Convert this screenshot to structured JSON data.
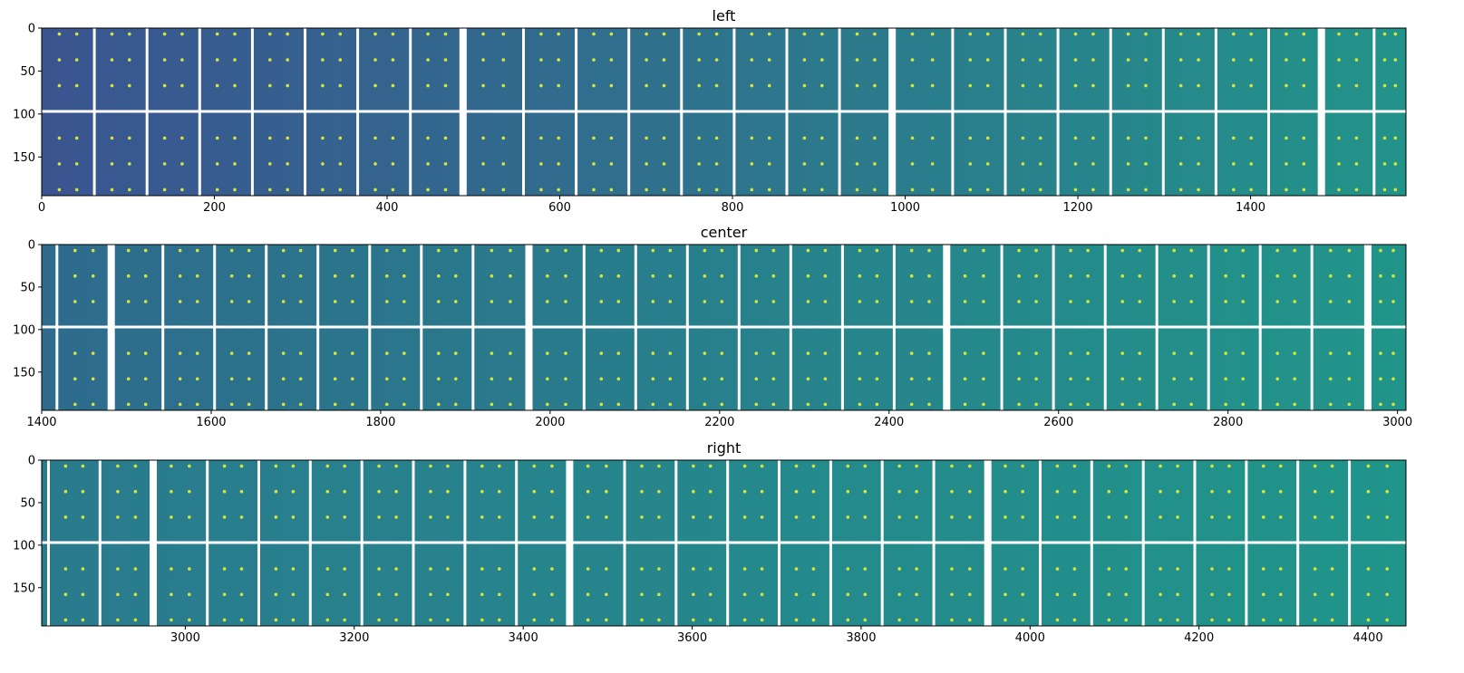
{
  "chart_data": [
    {
      "type": "heatmap",
      "title": "left",
      "xlabel": "",
      "ylabel": "",
      "colormap": "viridis",
      "xlim": [
        0,
        1580
      ],
      "ylim": [
        195,
        0
      ],
      "xticks": [
        0,
        200,
        400,
        600,
        800,
        1000,
        1200,
        1400
      ],
      "yticks": [
        0,
        50,
        100,
        150
      ],
      "gap_rows": [
        97
      ],
      "gap_cols": [
        61,
        122,
        183,
        244,
        305,
        366,
        427,
        488,
        558,
        619,
        680,
        741,
        802,
        863,
        924,
        985,
        1055,
        1116,
        1177,
        1238,
        1299,
        1360,
        1421,
        1482,
        1543
      ],
      "wide_gap_cols": [
        488,
        985,
        1482
      ],
      "spot_rows": [
        7,
        37,
        67,
        128,
        158,
        188
      ],
      "spot_cols_per_tile": 2,
      "colors": {
        "dark": "#3a5490",
        "light": "#22938a",
        "spot": "#d6e638",
        "gap": "#ffffff"
      }
    },
    {
      "type": "heatmap",
      "title": "center",
      "xlabel": "",
      "ylabel": "",
      "colormap": "viridis",
      "xlim": [
        1400,
        3010
      ],
      "ylim": [
        195,
        0
      ],
      "xticks": [
        1400,
        1600,
        1800,
        2000,
        2200,
        2400,
        2600,
        2800,
        3000
      ],
      "yticks": [
        0,
        50,
        100,
        150
      ],
      "gap_rows": [
        97
      ],
      "gap_cols": [
        1418,
        1482,
        1543,
        1604,
        1665,
        1726,
        1787,
        1848,
        1909,
        1975,
        2040,
        2101,
        2162,
        2223,
        2284,
        2345,
        2406,
        2468,
        2533,
        2594,
        2655,
        2716,
        2777,
        2838,
        2899,
        2965
      ],
      "wide_gap_cols": [
        1482,
        1975,
        2468,
        2965
      ],
      "spot_rows": [
        7,
        37,
        67,
        128,
        158,
        188
      ],
      "spot_cols_per_tile": 2,
      "colors": {
        "dark": "#2e6b8d",
        "light": "#21958a",
        "spot": "#d6e638",
        "gap": "#ffffff"
      }
    },
    {
      "type": "heatmap",
      "title": "right",
      "xlabel": "",
      "ylabel": "",
      "colormap": "viridis",
      "xlim": [
        2830,
        4445
      ],
      "ylim": [
        195,
        0
      ],
      "xticks": [
        3000,
        3200,
        3400,
        3600,
        3800,
        4000,
        4200,
        4400
      ],
      "yticks": [
        0,
        50,
        100,
        150
      ],
      "gap_rows": [
        97
      ],
      "gap_cols": [
        2838,
        2899,
        2962,
        3026,
        3087,
        3148,
        3209,
        3270,
        3331,
        3392,
        3455,
        3520,
        3581,
        3642,
        3703,
        3764,
        3825,
        3886,
        3950,
        4012,
        4073,
        4134,
        4195,
        4256,
        4317,
        4378
      ],
      "wide_gap_cols": [
        2962,
        3455,
        3950
      ],
      "spot_rows": [
        7,
        37,
        67,
        128,
        158,
        188
      ],
      "spot_cols_per_tile": 2,
      "colors": {
        "dark": "#2a7a8e",
        "light": "#20958a",
        "spot": "#d6e638",
        "gap": "#ffffff"
      }
    }
  ]
}
